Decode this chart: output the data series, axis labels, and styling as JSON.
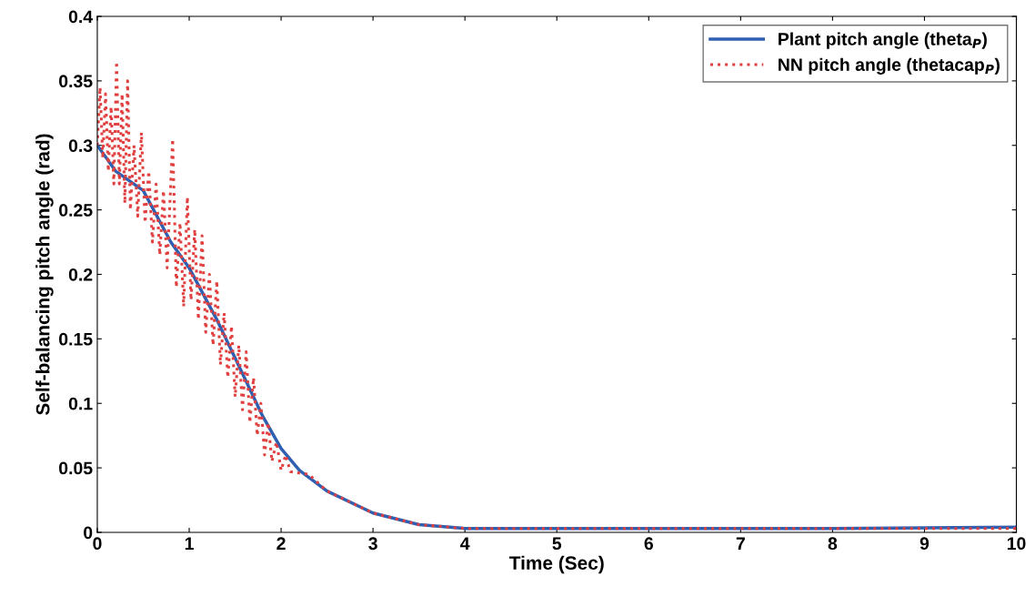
{
  "chart_data": {
    "type": "line",
    "xlabel": "Time (Sec)",
    "ylabel": "Self-balancing pitch angle (rad)",
    "xlim": [
      0,
      10
    ],
    "ylim": [
      0,
      0.4
    ],
    "xticks": [
      0,
      1,
      2,
      3,
      4,
      5,
      6,
      7,
      8,
      9,
      10
    ],
    "yticks": [
      0,
      0.05,
      0.1,
      0.15,
      0.2,
      0.25,
      0.3,
      0.35,
      0.4
    ],
    "grid": false,
    "legend": "top right",
    "series": [
      {
        "name": "Plant pitch angle (theta$_{P}$)",
        "color": "#2f5fb0",
        "line_style": "solid",
        "x": [
          0,
          0.2,
          0.5,
          0.8,
          1,
          1.3,
          1.5,
          1.8,
          2,
          2.2,
          2.5,
          3,
          3.5,
          4,
          6,
          8,
          10
        ],
        "values": [
          0.3,
          0.28,
          0.265,
          0.225,
          0.205,
          0.165,
          0.135,
          0.09,
          0.065,
          0.048,
          0.032,
          0.015,
          0.006,
          0.003,
          0.003,
          0.003,
          0.004
        ]
      },
      {
        "name": "NN pitch angle (thetacap$_{P}$)",
        "color": "#e0403f",
        "line_style": "dotted",
        "x": [
          0,
          0.03,
          0.06,
          0.09,
          0.12,
          0.15,
          0.18,
          0.21,
          0.24,
          0.27,
          0.3,
          0.33,
          0.36,
          0.4,
          0.44,
          0.48,
          0.52,
          0.56,
          0.6,
          0.64,
          0.68,
          0.72,
          0.76,
          0.82,
          0.86,
          0.9,
          0.94,
          0.98,
          1.02,
          1.06,
          1.1,
          1.14,
          1.18,
          1.22,
          1.26,
          1.3,
          1.34,
          1.38,
          1.42,
          1.46,
          1.5,
          1.54,
          1.58,
          1.62,
          1.66,
          1.7,
          1.74,
          1.78,
          1.82,
          1.86,
          1.9,
          1.95,
          2,
          2.05,
          2.1,
          2.2,
          2.3,
          2.5,
          3,
          3.5,
          4,
          6,
          8,
          10
        ],
        "values": [
          0.3,
          0.345,
          0.29,
          0.34,
          0.28,
          0.33,
          0.27,
          0.365,
          0.27,
          0.34,
          0.255,
          0.35,
          0.25,
          0.3,
          0.245,
          0.31,
          0.24,
          0.28,
          0.225,
          0.27,
          0.215,
          0.265,
          0.205,
          0.305,
          0.19,
          0.24,
          0.175,
          0.26,
          0.18,
          0.235,
          0.165,
          0.23,
          0.155,
          0.2,
          0.145,
          0.195,
          0.13,
          0.17,
          0.12,
          0.16,
          0.105,
          0.145,
          0.095,
          0.14,
          0.085,
          0.12,
          0.075,
          0.1,
          0.06,
          0.085,
          0.055,
          0.07,
          0.048,
          0.06,
          0.047,
          0.046,
          0.045,
          0.032,
          0.015,
          0.006,
          0.003,
          0.003,
          0.003,
          0.003
        ]
      }
    ]
  }
}
